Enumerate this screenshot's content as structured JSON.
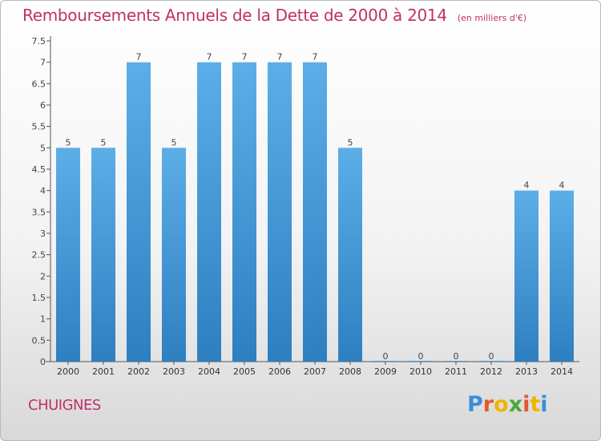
{
  "chart_data": {
    "type": "bar",
    "title": "Remboursements Annuels de la Dette de 2000 à 2014",
    "subtitle": "(en milliers d'€)",
    "categories": [
      "2000",
      "2001",
      "2002",
      "2003",
      "2004",
      "2005",
      "2006",
      "2007",
      "2008",
      "2009",
      "2010",
      "2011",
      "2012",
      "2013",
      "2014"
    ],
    "values": [
      5,
      5,
      7,
      5,
      7,
      7,
      7,
      7,
      5,
      0,
      0,
      0,
      0,
      4,
      4
    ],
    "data_labels": [
      "5",
      "5",
      "7",
      "5",
      "7",
      "7",
      "7",
      "7",
      "5",
      "0",
      "0",
      "0",
      "0",
      "4",
      "4"
    ],
    "ylim": [
      0,
      7.5
    ],
    "yticks": [
      0,
      0.5,
      1,
      1.5,
      2,
      2.5,
      3,
      3.5,
      4,
      4.5,
      5,
      5.5,
      6,
      6.5,
      7,
      7.5
    ],
    "ytick_labels": [
      "0",
      "0.5",
      "1",
      "1.5",
      "2",
      "2.5",
      "3",
      "3.5",
      "4",
      "4.5",
      "5",
      "5.5",
      "6",
      "6.5",
      "7",
      "7.5"
    ],
    "grid": false,
    "bar_color": "#4a9ee0"
  },
  "footer": {
    "commune": "CHUIGNES",
    "logo_letters": [
      "P",
      "r",
      "o",
      "x",
      "i",
      "t",
      "i"
    ],
    "logo_colors": [
      "#3a8fd6",
      "#e25a2b",
      "#f0b400",
      "#4aa83a",
      "#e25a2b",
      "#f0b400",
      "#3a8fd6"
    ]
  }
}
